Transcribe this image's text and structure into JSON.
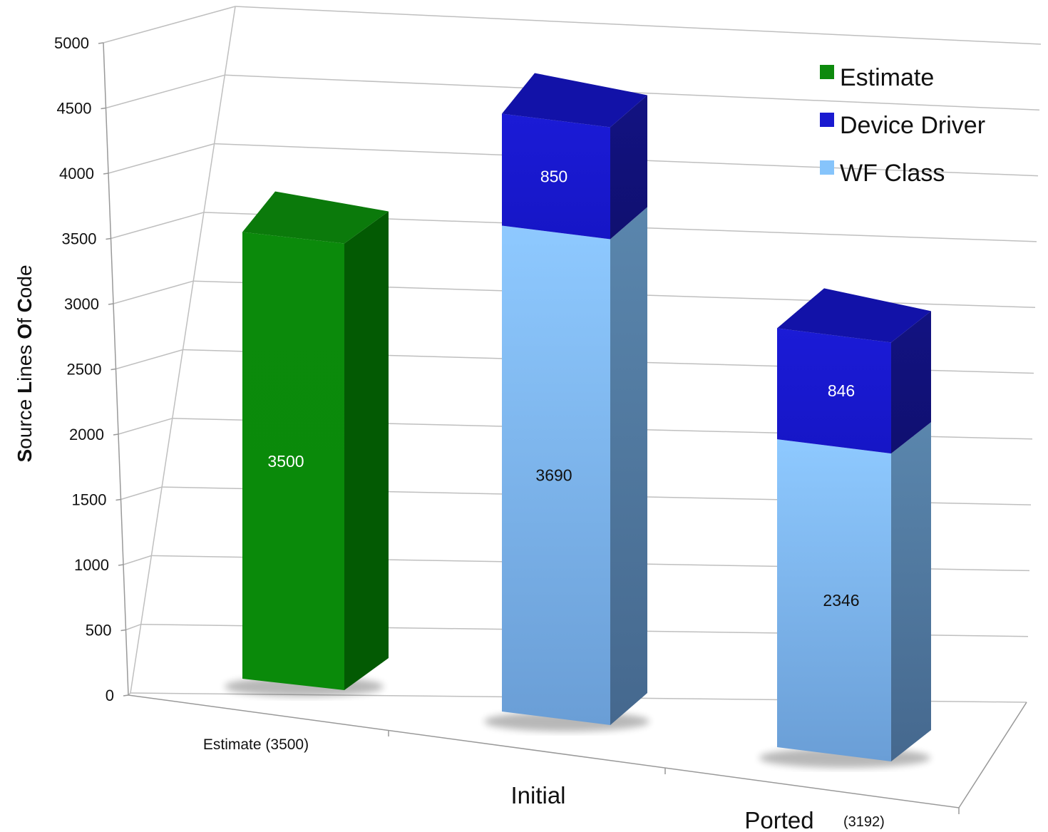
{
  "chart_data": {
    "type": "bar",
    "stacked": true,
    "three_d": true,
    "categories": [
      "Estimate (3500)",
      "Initial",
      "Ported (3192)"
    ],
    "category_display": [
      {
        "main": "Estimate (3500)",
        "suffix": ""
      },
      {
        "main": "Initial",
        "suffix": ""
      },
      {
        "main": "Ported",
        "suffix": "(3192)"
      }
    ],
    "series": [
      {
        "name": "Estimate",
        "color": "#0d8a0d",
        "values": [
          3500,
          0,
          0
        ]
      },
      {
        "name": "WF Class",
        "color": "#86c4fb",
        "values": [
          0,
          3690,
          2346
        ]
      },
      {
        "name": "Device Driver",
        "color": "#1a1ad0",
        "values": [
          0,
          850,
          846
        ]
      }
    ],
    "legend": {
      "placement": "top-right",
      "entries": [
        {
          "name": "Estimate",
          "color": "#0d8a0d"
        },
        {
          "name": "Device Driver",
          "color": "#1a1ad0"
        },
        {
          "name": "WF Class",
          "color": "#86c4fb"
        }
      ]
    },
    "ylabel_parts": [
      {
        "text": "S",
        "bold": true
      },
      {
        "text": "ource ",
        "bold": false
      },
      {
        "text": "L",
        "bold": true
      },
      {
        "text": "ines ",
        "bold": false
      },
      {
        "text": "O",
        "bold": true
      },
      {
        "text": "f ",
        "bold": false
      },
      {
        "text": "C",
        "bold": true
      },
      {
        "text": "ode",
        "bold": false
      }
    ],
    "xlabel": "",
    "title": "",
    "ylim": [
      0,
      5000
    ],
    "yticks": [
      "0",
      "500",
      "1000",
      "1500",
      "2000",
      "2500",
      "3000",
      "3500",
      "4000",
      "4500",
      "5000"
    ],
    "grid": true
  }
}
